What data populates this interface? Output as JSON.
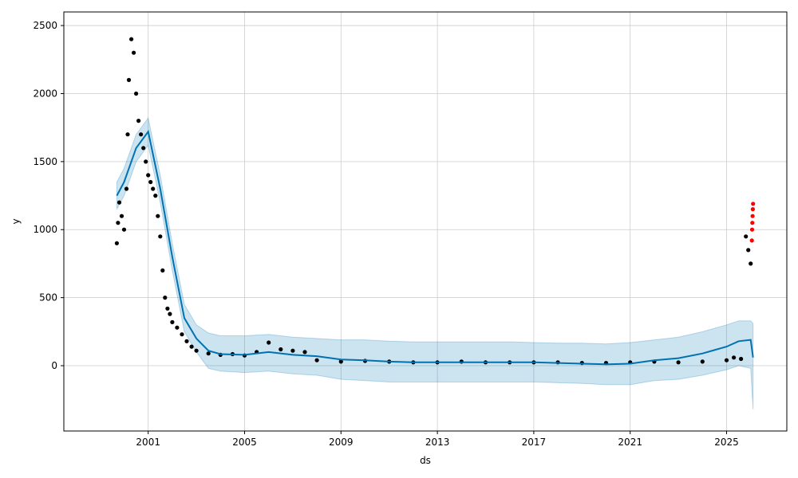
{
  "chart_data": {
    "type": "line",
    "xlabel": "ds",
    "ylabel": "y",
    "xlim": [
      1997.5,
      2027.5
    ],
    "ylim": [
      -480,
      2600
    ],
    "x_ticks": [
      2001,
      2005,
      2009,
      2013,
      2017,
      2021,
      2025
    ],
    "x_tick_labels": [
      "2001",
      "2005",
      "2009",
      "2013",
      "2017",
      "2021",
      "2025"
    ],
    "y_ticks": [
      0,
      500,
      1000,
      1500,
      2000,
      2500
    ],
    "y_tick_labels": [
      "0",
      "500",
      "1000",
      "1500",
      "2000",
      "2500"
    ],
    "grid": true,
    "colors": {
      "observed": "#000000",
      "forecast_line": "#0072B2",
      "uncertainty_band": "#0072B2",
      "highlight": "#ff0000"
    },
    "series": [
      {
        "kind": "scatter",
        "x": [
          1999.7,
          1999.75,
          1999.8,
          1999.9,
          2000.0,
          2000.1,
          2000.15,
          2000.2,
          2000.3,
          2000.4,
          2000.5,
          2000.6,
          2000.7,
          2000.8,
          2000.9,
          2001.0,
          2001.1,
          2001.2,
          2001.3,
          2001.4,
          2001.5,
          2001.6,
          2001.7,
          2001.8,
          2001.9,
          2002.0,
          2002.2,
          2002.4,
          2002.6,
          2002.8,
          2003.0,
          2003.5,
          2004.0,
          2004.5,
          2005.0,
          2005.5,
          2006.0,
          2006.5,
          2007.0,
          2007.5,
          2008.0,
          2009.0,
          2010.0,
          2011.0,
          2012.0,
          2013.0,
          2014.0,
          2015.0,
          2016.0,
          2017.0,
          2018.0,
          2019.0,
          2020.0,
          2021.0,
          2022.0,
          2023.0,
          2024.0,
          2025.0,
          2025.3,
          2025.6,
          2025.8,
          2025.9,
          2026.0
        ],
        "y": [
          900,
          1050,
          1200,
          1100,
          1000,
          1300,
          1700,
          2100,
          2400,
          2300,
          2000,
          1800,
          1700,
          1600,
          1500,
          1400,
          1350,
          1300,
          1250,
          1100,
          950,
          700,
          500,
          420,
          380,
          320,
          280,
          230,
          180,
          140,
          110,
          90,
          80,
          85,
          75,
          100,
          170,
          120,
          110,
          100,
          40,
          30,
          35,
          30,
          25,
          25,
          30,
          25,
          25,
          25,
          25,
          20,
          20,
          25,
          30,
          25,
          30,
          40,
          60,
          50,
          950,
          850,
          750
        ]
      },
      {
        "kind": "scatter",
        "x": [
          2026.05,
          2026.06,
          2026.07,
          2026.08,
          2026.09,
          2026.1
        ],
        "y": [
          920,
          1000,
          1050,
          1100,
          1150,
          1190
        ]
      },
      {
        "kind": "line",
        "x": [
          1999.7,
          2000.0,
          2000.5,
          2001.0,
          2001.5,
          2002.0,
          2002.5,
          2003.0,
          2003.5,
          2004.0,
          2005.0,
          2006.0,
          2007.0,
          2008.0,
          2009.0,
          2010.0,
          2011.0,
          2012.0,
          2013.0,
          2014.0,
          2015.0,
          2016.0,
          2017.0,
          2018.0,
          2019.0,
          2020.0,
          2021.0,
          2022.0,
          2023.0,
          2024.0,
          2025.0,
          2025.5,
          2026.0,
          2026.1
        ],
        "y": [
          1250,
          1350,
          1600,
          1720,
          1300,
          800,
          350,
          200,
          110,
          85,
          80,
          100,
          80,
          70,
          45,
          40,
          30,
          25,
          25,
          25,
          25,
          25,
          25,
          20,
          15,
          10,
          15,
          40,
          55,
          90,
          140,
          180,
          190,
          60
        ],
        "lower": [
          1150,
          1250,
          1500,
          1620,
          1200,
          700,
          250,
          100,
          -20,
          -40,
          -50,
          -40,
          -60,
          -70,
          -100,
          -110,
          -120,
          -120,
          -120,
          -120,
          -120,
          -120,
          -120,
          -125,
          -130,
          -140,
          -140,
          -110,
          -100,
          -70,
          -30,
          0,
          -20,
          -320
        ],
        "upper": [
          1350,
          1450,
          1700,
          1820,
          1400,
          900,
          450,
          300,
          240,
          220,
          220,
          230,
          210,
          200,
          190,
          190,
          180,
          175,
          175,
          175,
          175,
          175,
          170,
          165,
          165,
          160,
          170,
          190,
          210,
          250,
          300,
          330,
          330,
          310
        ]
      }
    ]
  }
}
